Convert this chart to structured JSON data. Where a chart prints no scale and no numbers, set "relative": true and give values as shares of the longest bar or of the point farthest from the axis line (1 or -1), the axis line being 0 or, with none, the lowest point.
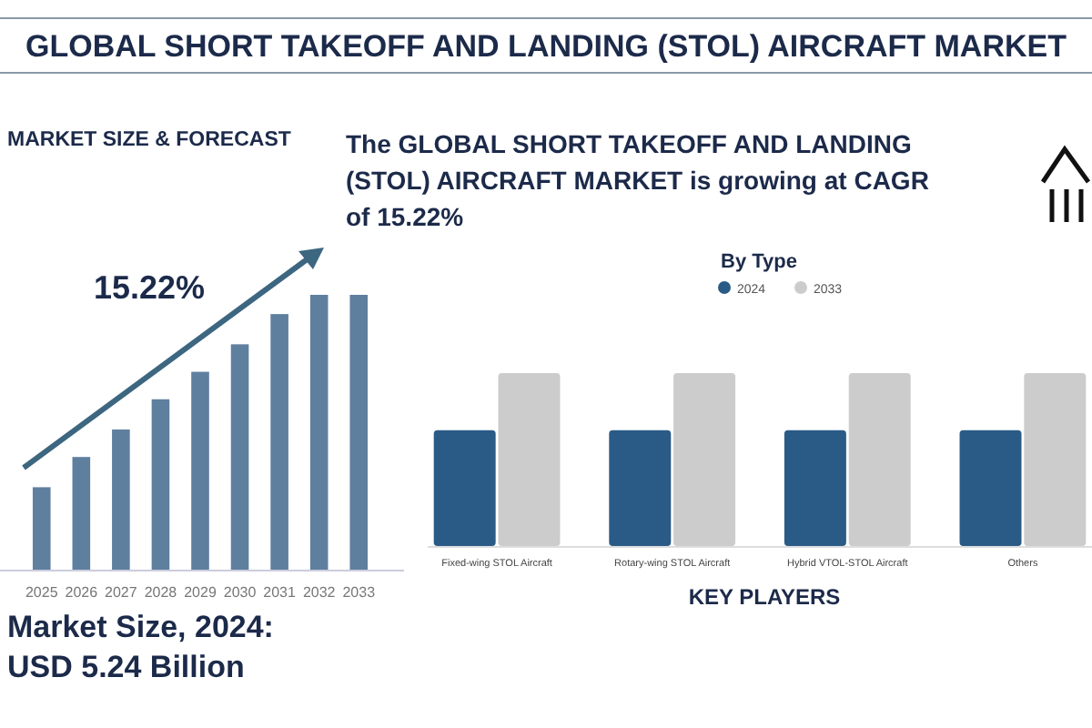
{
  "chart_data": [
    {
      "type": "other",
      "title": "GLOBAL SHORT TAKEOFF AND LANDING (STOL) AIRCRAFT MARKET",
      "annotations": [
        "The GLOBAL SHORT TAKEOFF AND LANDING (STOL) AIRCRAFT MARKET is growing at CAGR of 15.22%",
        "KEY PLAYERS"
      ]
    },
    {
      "type": "bar",
      "title": "MARKET SIZE & FORECAST",
      "relative": true,
      "categories": [
        "2025",
        "2026",
        "2027",
        "2028",
        "2029",
        "2030",
        "2031",
        "2032",
        "2033"
      ],
      "values": [
        0.3,
        0.41,
        0.51,
        0.62,
        0.72,
        0.82,
        0.93,
        1,
        1
      ],
      "color": "#5f7f9f",
      "annotations": [
        "15.22%",
        "Market Size, 2024:",
        "USD 5.24 Billion"
      ]
    },
    {
      "type": "bar",
      "title": "By Type",
      "relative": true,
      "legend": "top",
      "categories": [
        "Fixed-wing STOL Aircraft",
        "Rotary-wing STOL Aircraft",
        "Hybrid VTOL-STOL Aircraft",
        "Others"
      ],
      "series": [
        {
          "name": "2024",
          "color": "#2a5b87",
          "values": [
            0.67,
            0.67,
            0.67,
            0.67
          ]
        },
        {
          "name": "2033",
          "color": "#cccccc",
          "values": [
            1,
            1,
            1,
            1
          ]
        }
      ]
    }
  ]
}
